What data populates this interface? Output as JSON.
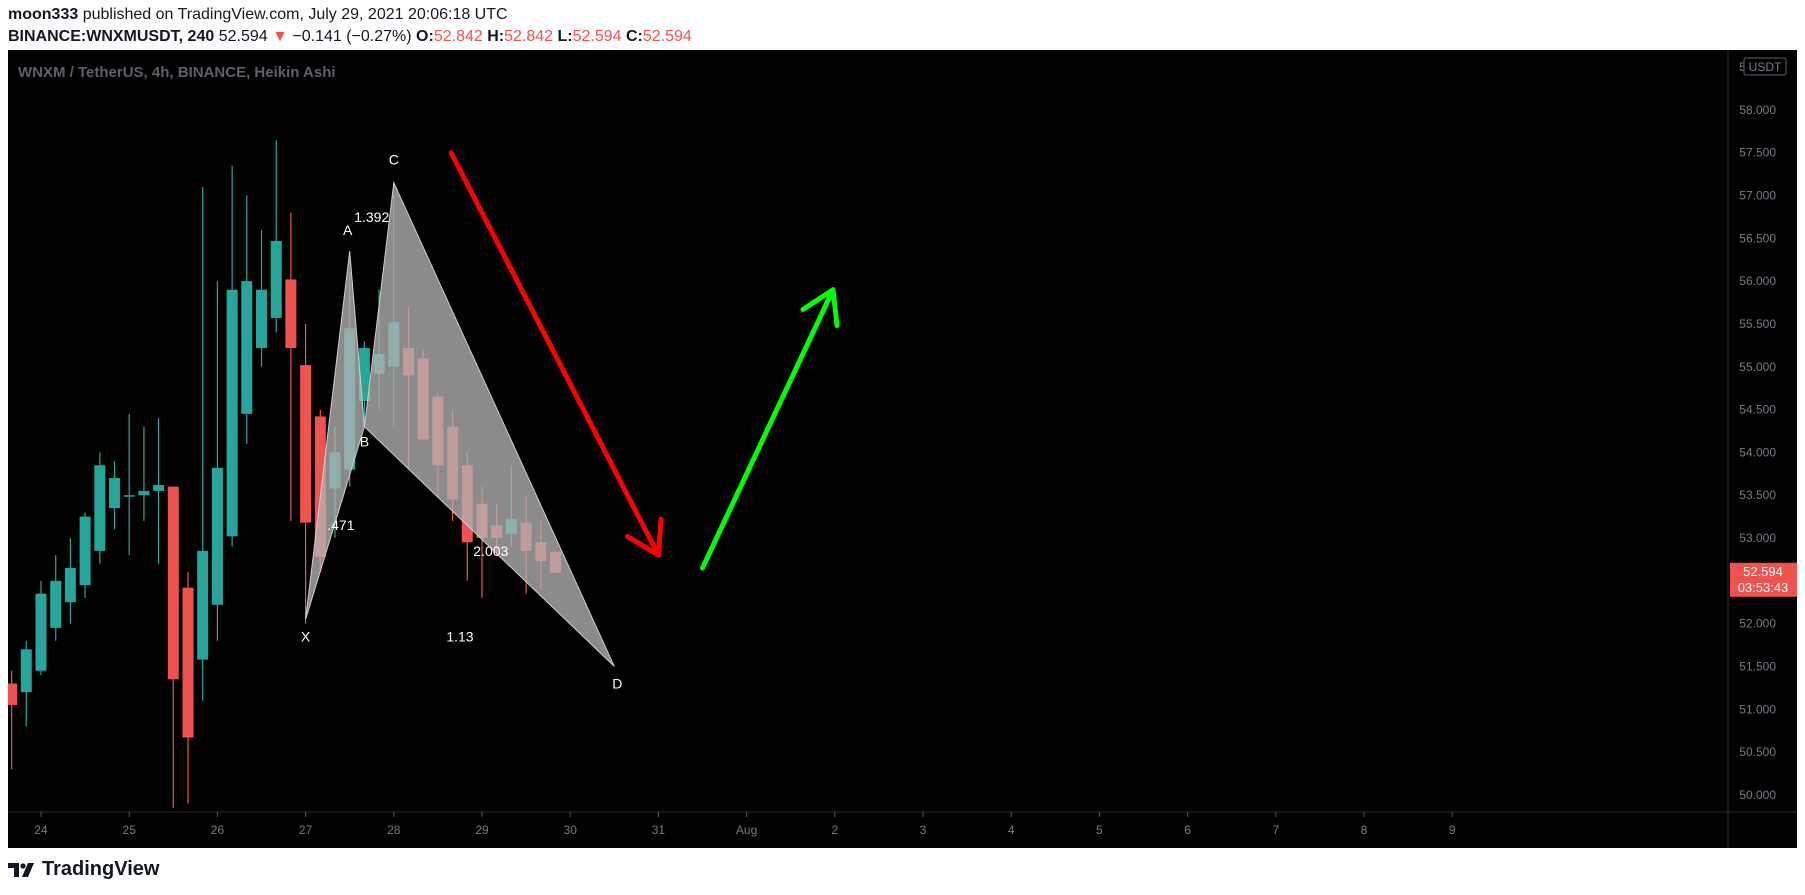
{
  "header": {
    "author": "moon333",
    "published": "published on TradingView.com, July 29, 2021 20:06:18 UTC",
    "symbol": "BINANCE:WNXMUSDT, 240",
    "last": "52.594",
    "change": "−0.141 (−0.27%)",
    "o_label": "O:",
    "o_value": "52.842",
    "h_label": "H:",
    "h_value": "52.842",
    "l_label": "L:",
    "l_value": "52.594",
    "c_label": "C:",
    "c_value": "52.594"
  },
  "chart_title": "WNXM / TetherUS, 4h, BINANCE, Heikin Ashi",
  "currency": "USDT",
  "footer_brand": "TradingView",
  "colors": {
    "up": "#26a69a",
    "down": "#ef5350",
    "background": "#000000",
    "pattern_fill": "#b2b2b2",
    "arrow_down": "#ff0000",
    "arrow_up": "#00ff00"
  },
  "chart_data": {
    "type": "candlestick",
    "title": "WNXM / TetherUS, 4h, BINANCE, Heikin Ashi",
    "y_range": [
      49.8,
      58.7
    ],
    "y_ticks": [
      "50.000",
      "50.500",
      "51.000",
      "51.500",
      "52.000",
      "52.500",
      "53.000",
      "53.500",
      "54.000",
      "54.500",
      "55.000",
      "55.500",
      "56.000",
      "56.500",
      "57.000",
      "57.500",
      "58.000",
      "58.500"
    ],
    "x_ticks": [
      {
        "label": "24",
        "t": 24
      },
      {
        "label": "25",
        "t": 25
      },
      {
        "label": "26",
        "t": 26
      },
      {
        "label": "27",
        "t": 27
      },
      {
        "label": "28",
        "t": 28
      },
      {
        "label": "29",
        "t": 29
      },
      {
        "label": "30",
        "t": 30
      },
      {
        "label": "31",
        "t": 31
      },
      {
        "label": "Aug",
        "t": 32
      },
      {
        "label": "2",
        "t": 33
      },
      {
        "label": "3",
        "t": 34
      },
      {
        "label": "4",
        "t": 35
      },
      {
        "label": "5",
        "t": 36
      },
      {
        "label": "6",
        "t": 37
      },
      {
        "label": "7",
        "t": 38
      },
      {
        "label": "8",
        "t": 39
      },
      {
        "label": "9",
        "t": 40
      }
    ],
    "last_price": "52.594",
    "countdown": "03:53:43",
    "candles": [
      {
        "t": 23.667,
        "o": 51.3,
        "h": 51.45,
        "l": 50.3,
        "c": 51.05
      },
      {
        "t": 23.833,
        "o": 51.2,
        "h": 51.8,
        "l": 50.8,
        "c": 51.7
      },
      {
        "t": 24.0,
        "o": 51.45,
        "h": 52.5,
        "l": 51.4,
        "c": 52.35
      },
      {
        "t": 24.167,
        "o": 51.95,
        "h": 52.8,
        "l": 51.8,
        "c": 52.5
      },
      {
        "t": 24.333,
        "o": 52.25,
        "h": 53.0,
        "l": 52.0,
        "c": 52.65
      },
      {
        "t": 24.5,
        "o": 52.45,
        "h": 53.3,
        "l": 52.3,
        "c": 53.25
      },
      {
        "t": 24.667,
        "o": 52.85,
        "h": 54.0,
        "l": 52.7,
        "c": 53.85
      },
      {
        "t": 24.833,
        "o": 53.35,
        "h": 53.9,
        "l": 53.1,
        "c": 53.7
      },
      {
        "t": 25.0,
        "o": 53.5,
        "h": 54.45,
        "l": 52.8,
        "c": 53.5
      },
      {
        "t": 25.167,
        "o": 53.5,
        "h": 54.3,
        "l": 53.2,
        "c": 53.55
      },
      {
        "t": 25.333,
        "o": 53.55,
        "h": 54.4,
        "l": 52.7,
        "c": 53.62
      },
      {
        "t": 25.5,
        "o": 53.6,
        "h": 53.6,
        "l": 49.85,
        "c": 51.35
      },
      {
        "t": 25.667,
        "o": 52.42,
        "h": 52.6,
        "l": 49.9,
        "c": 50.67
      },
      {
        "t": 25.833,
        "o": 51.58,
        "h": 57.1,
        "l": 51.1,
        "c": 52.85
      },
      {
        "t": 26.0,
        "o": 52.22,
        "h": 56.0,
        "l": 51.8,
        "c": 53.82
      },
      {
        "t": 26.167,
        "o": 53.02,
        "h": 57.35,
        "l": 52.9,
        "c": 55.9
      },
      {
        "t": 26.333,
        "o": 54.45,
        "h": 57.0,
        "l": 54.1,
        "c": 56.0
      },
      {
        "t": 26.5,
        "o": 55.22,
        "h": 56.6,
        "l": 55.0,
        "c": 55.9
      },
      {
        "t": 26.667,
        "o": 55.57,
        "h": 57.65,
        "l": 55.4,
        "c": 56.47
      },
      {
        "t": 26.833,
        "o": 56.02,
        "h": 56.8,
        "l": 53.2,
        "c": 55.22
      },
      {
        "t": 27.0,
        "o": 55.02,
        "h": 55.5,
        "l": 52.0,
        "c": 53.18
      },
      {
        "t": 27.167,
        "o": 54.42,
        "h": 54.5,
        "l": 52.6,
        "c": 52.78
      },
      {
        "t": 27.333,
        "o": 53.58,
        "h": 54.3,
        "l": 53.0,
        "c": 54.0
      },
      {
        "t": 27.5,
        "o": 53.8,
        "h": 56.1,
        "l": 53.6,
        "c": 55.45
      },
      {
        "t": 27.667,
        "o": 54.6,
        "h": 55.3,
        "l": 54.3,
        "c": 55.22
      },
      {
        "t": 27.833,
        "o": 54.92,
        "h": 55.9,
        "l": 54.5,
        "c": 55.15
      },
      {
        "t": 28.0,
        "o": 55.0,
        "h": 57.0,
        "l": 54.3,
        "c": 55.52
      },
      {
        "t": 28.167,
        "o": 55.22,
        "h": 55.7,
        "l": 53.8,
        "c": 54.9
      },
      {
        "t": 28.333,
        "o": 55.1,
        "h": 55.2,
        "l": 54.2,
        "c": 54.15
      },
      {
        "t": 28.5,
        "o": 54.65,
        "h": 54.7,
        "l": 53.5,
        "c": 53.85
      },
      {
        "t": 28.667,
        "o": 54.3,
        "h": 54.5,
        "l": 53.2,
        "c": 53.45
      },
      {
        "t": 28.833,
        "o": 53.85,
        "h": 54.0,
        "l": 52.5,
        "c": 52.95
      },
      {
        "t": 29.0,
        "o": 53.4,
        "h": 53.6,
        "l": 52.3,
        "c": 53.0
      },
      {
        "t": 29.167,
        "o": 53.15,
        "h": 53.4,
        "l": 52.8,
        "c": 53.0
      },
      {
        "t": 29.333,
        "o": 53.05,
        "h": 53.85,
        "l": 52.9,
        "c": 53.22
      },
      {
        "t": 29.5,
        "o": 53.18,
        "h": 53.5,
        "l": 52.35,
        "c": 52.85
      },
      {
        "t": 29.667,
        "o": 52.95,
        "h": 53.2,
        "l": 52.4,
        "c": 52.73
      },
      {
        "t": 29.833,
        "o": 52.84,
        "h": 52.84,
        "l": 52.594,
        "c": 52.594
      }
    ],
    "harmonic_pattern": {
      "points": [
        {
          "label": "X",
          "t": 27.0,
          "p": 52.05
        },
        {
          "label": "A",
          "t": 27.5,
          "p": 56.35
        },
        {
          "label": "B",
          "t": 27.667,
          "p": 54.3
        },
        {
          "label": "C",
          "t": 28.0,
          "p": 57.15
        },
        {
          "label": "D",
          "t": 30.5,
          "p": 51.5
        }
      ],
      "ratios": [
        {
          "text": ".471",
          "t": 27.4,
          "p": 53.15
        },
        {
          "text": "1.392",
          "t": 27.75,
          "p": 56.75
        },
        {
          "text": "2.003",
          "t": 29.1,
          "p": 52.85
        },
        {
          "text": "1.13",
          "t": 28.75,
          "p": 51.85
        }
      ]
    },
    "arrows": [
      {
        "name": "down",
        "from": [
          28.65,
          57.5
        ],
        "to": [
          31.0,
          52.8
        ]
      },
      {
        "name": "up",
        "from": [
          31.5,
          52.65
        ],
        "to": [
          32.98,
          55.9
        ]
      }
    ]
  }
}
